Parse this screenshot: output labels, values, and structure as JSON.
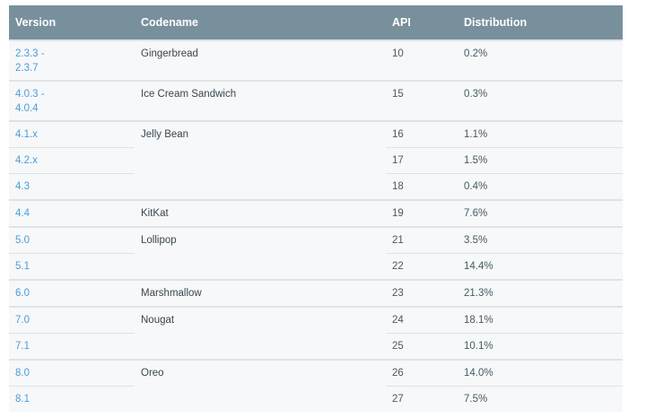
{
  "table": {
    "headers": {
      "version": "Version",
      "codename": "Codename",
      "api": "API",
      "distribution": "Distribution"
    },
    "groups": [
      {
        "codename": "Gingerbread",
        "rows": [
          {
            "version_line1": "2.3.3 -",
            "version_line2": "2.3.7",
            "api": "10",
            "distribution": "0.2%"
          }
        ]
      },
      {
        "codename": "Ice Cream Sandwich",
        "rows": [
          {
            "version_line1": "4.0.3 -",
            "version_line2": "4.0.4",
            "api": "15",
            "distribution": "0.3%"
          }
        ]
      },
      {
        "codename": "Jelly Bean",
        "rows": [
          {
            "version": "4.1.x",
            "api": "16",
            "distribution": "1.1%"
          },
          {
            "version": "4.2.x",
            "api": "17",
            "distribution": "1.5%"
          },
          {
            "version": "4.3",
            "api": "18",
            "distribution": "0.4%"
          }
        ]
      },
      {
        "codename": "KitKat",
        "rows": [
          {
            "version": "4.4",
            "api": "19",
            "distribution": "7.6%"
          }
        ]
      },
      {
        "codename": "Lollipop",
        "rows": [
          {
            "version": "5.0",
            "api": "21",
            "distribution": "3.5%"
          },
          {
            "version": "5.1",
            "api": "22",
            "distribution": "14.4%"
          }
        ]
      },
      {
        "codename": "Marshmallow",
        "rows": [
          {
            "version": "6.0",
            "api": "23",
            "distribution": "21.3%"
          }
        ]
      },
      {
        "codename": "Nougat",
        "rows": [
          {
            "version": "7.0",
            "api": "24",
            "distribution": "18.1%"
          },
          {
            "version": "7.1",
            "api": "25",
            "distribution": "10.1%"
          }
        ]
      },
      {
        "codename": "Oreo",
        "rows": [
          {
            "version": "8.0",
            "api": "26",
            "distribution": "14.0%"
          },
          {
            "version": "8.1",
            "api": "27",
            "distribution": "7.5%"
          }
        ]
      }
    ]
  },
  "colors": {
    "header_bg": "#78909c",
    "header_text": "#ffffff",
    "row_bg": "#f7f8fa",
    "link": "#4b9dd6",
    "text": "#37474f",
    "border": "#dfe3e6"
  }
}
